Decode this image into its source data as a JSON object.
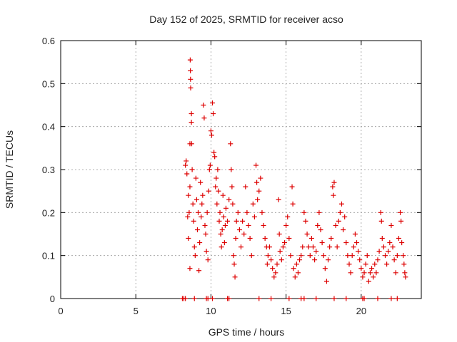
{
  "chart_data": {
    "type": "scatter",
    "title": "Day 152 of 2025, SRMTID for receiver acso",
    "xlabel": "GPS time / hours",
    "ylabel": "SRMTID / TECUs",
    "xlim": [
      0,
      24
    ],
    "ylim": [
      0,
      0.6
    ],
    "xticks": [
      "0",
      "5",
      "10",
      "15",
      "20"
    ],
    "yticks": [
      "0",
      "0.1",
      "0.2",
      "0.3",
      "0.4",
      "0.5",
      "0.6"
    ],
    "grid": true,
    "marker": "+",
    "color": "#dd0000",
    "series": [
      {
        "name": "SRMTID",
        "points": [
          [
            8.1,
            0.0
          ],
          [
            8.2,
            0.0
          ],
          [
            8.3,
            0.0
          ],
          [
            8.9,
            0.0
          ],
          [
            9.7,
            0.0
          ],
          [
            9.8,
            0.0
          ],
          [
            10.1,
            0.0
          ],
          [
            11.1,
            0.0
          ],
          [
            11.2,
            0.0
          ],
          [
            13.2,
            0.0
          ],
          [
            14.0,
            0.0
          ],
          [
            15.2,
            0.0
          ],
          [
            16.0,
            0.0
          ],
          [
            16.2,
            0.0
          ],
          [
            17.0,
            0.0
          ],
          [
            18.2,
            0.0
          ],
          [
            19.0,
            0.0
          ],
          [
            20.1,
            0.0
          ],
          [
            20.2,
            0.0
          ],
          [
            21.1,
            0.0
          ],
          [
            22.0,
            0.0
          ],
          [
            22.4,
            0.0
          ],
          [
            8.3,
            0.31
          ],
          [
            8.35,
            0.32
          ],
          [
            8.4,
            0.29
          ],
          [
            8.45,
            0.19
          ],
          [
            8.5,
            0.24
          ],
          [
            8.5,
            0.14
          ],
          [
            8.55,
            0.2
          ],
          [
            8.6,
            0.36
          ],
          [
            8.6,
            0.26
          ],
          [
            8.6,
            0.07
          ],
          [
            8.62,
            0.555
          ],
          [
            8.63,
            0.53
          ],
          [
            8.64,
            0.51
          ],
          [
            8.65,
            0.49
          ],
          [
            8.7,
            0.43
          ],
          [
            8.7,
            0.41
          ],
          [
            8.72,
            0.36
          ],
          [
            8.75,
            0.3
          ],
          [
            8.8,
            0.22
          ],
          [
            8.85,
            0.18
          ],
          [
            8.9,
            0.12
          ],
          [
            8.95,
            0.1
          ],
          [
            9.0,
            0.28
          ],
          [
            9.05,
            0.23
          ],
          [
            9.1,
            0.16
          ],
          [
            9.15,
            0.2
          ],
          [
            9.2,
            0.065
          ],
          [
            9.25,
            0.13
          ],
          [
            9.3,
            0.27
          ],
          [
            9.35,
            0.19
          ],
          [
            9.4,
            0.22
          ],
          [
            9.45,
            0.24
          ],
          [
            9.5,
            0.45
          ],
          [
            9.55,
            0.42
          ],
          [
            9.6,
            0.17
          ],
          [
            9.65,
            0.15
          ],
          [
            9.7,
            0.11
          ],
          [
            9.75,
            0.2
          ],
          [
            9.8,
            0.09
          ],
          [
            9.85,
            0.25
          ],
          [
            9.9,
            0.3
          ],
          [
            9.95,
            0.31
          ],
          [
            10.0,
            0.39
          ],
          [
            10.05,
            0.38
          ],
          [
            10.1,
            0.455
          ],
          [
            10.15,
            0.43
          ],
          [
            10.2,
            0.34
          ],
          [
            10.25,
            0.33
          ],
          [
            10.3,
            0.26
          ],
          [
            10.35,
            0.28
          ],
          [
            10.4,
            0.22
          ],
          [
            10.45,
            0.3
          ],
          [
            10.5,
            0.25
          ],
          [
            10.55,
            0.18
          ],
          [
            10.6,
            0.2
          ],
          [
            10.65,
            0.15
          ],
          [
            10.7,
            0.12
          ],
          [
            10.75,
            0.16
          ],
          [
            10.8,
            0.24
          ],
          [
            10.85,
            0.19
          ],
          [
            10.9,
            0.13
          ],
          [
            10.95,
            0.17
          ],
          [
            11.0,
            0.21
          ],
          [
            11.1,
            0.18
          ],
          [
            11.2,
            0.23
          ],
          [
            11.3,
            0.36
          ],
          [
            11.35,
            0.3
          ],
          [
            11.4,
            0.26
          ],
          [
            11.45,
            0.22
          ],
          [
            11.5,
            0.1
          ],
          [
            11.55,
            0.08
          ],
          [
            11.6,
            0.05
          ],
          [
            11.65,
            0.14
          ],
          [
            11.7,
            0.18
          ],
          [
            11.8,
            0.2
          ],
          [
            11.9,
            0.16
          ],
          [
            12.0,
            0.12
          ],
          [
            12.1,
            0.18
          ],
          [
            12.2,
            0.15
          ],
          [
            12.3,
            0.26
          ],
          [
            12.4,
            0.2
          ],
          [
            12.5,
            0.17
          ],
          [
            12.6,
            0.14
          ],
          [
            12.7,
            0.1
          ],
          [
            12.8,
            0.22
          ],
          [
            12.9,
            0.19
          ],
          [
            13.0,
            0.31
          ],
          [
            13.05,
            0.27
          ],
          [
            13.1,
            0.23
          ],
          [
            13.2,
            0.25
          ],
          [
            13.3,
            0.28
          ],
          [
            13.4,
            0.2
          ],
          [
            13.5,
            0.17
          ],
          [
            13.6,
            0.14
          ],
          [
            13.7,
            0.12
          ],
          [
            13.75,
            0.08
          ],
          [
            13.8,
            0.1
          ],
          [
            13.9,
            0.12
          ],
          [
            14.0,
            0.09
          ],
          [
            14.1,
            0.07
          ],
          [
            14.2,
            0.05
          ],
          [
            14.3,
            0.06
          ],
          [
            14.4,
            0.08
          ],
          [
            14.5,
            0.23
          ],
          [
            14.55,
            0.15
          ],
          [
            14.6,
            0.11
          ],
          [
            14.7,
            0.09
          ],
          [
            14.8,
            0.12
          ],
          [
            14.9,
            0.13
          ],
          [
            15.0,
            0.17
          ],
          [
            15.1,
            0.19
          ],
          [
            15.2,
            0.14
          ],
          [
            15.3,
            0.1
          ],
          [
            15.4,
            0.26
          ],
          [
            15.45,
            0.22
          ],
          [
            15.5,
            0.07
          ],
          [
            15.6,
            0.05
          ],
          [
            15.7,
            0.08
          ],
          [
            15.8,
            0.06
          ],
          [
            15.9,
            0.09
          ],
          [
            16.0,
            0.1
          ],
          [
            16.1,
            0.12
          ],
          [
            16.2,
            0.2
          ],
          [
            16.3,
            0.18
          ],
          [
            16.4,
            0.15
          ],
          [
            16.5,
            0.12
          ],
          [
            16.6,
            0.1
          ],
          [
            16.7,
            0.14
          ],
          [
            16.8,
            0.12
          ],
          [
            16.9,
            0.09
          ],
          [
            17.0,
            0.11
          ],
          [
            17.1,
            0.17
          ],
          [
            17.2,
            0.2
          ],
          [
            17.3,
            0.16
          ],
          [
            17.4,
            0.13
          ],
          [
            17.5,
            0.1
          ],
          [
            17.6,
            0.07
          ],
          [
            17.7,
            0.04
          ],
          [
            17.8,
            0.09
          ],
          [
            17.9,
            0.12
          ],
          [
            18.0,
            0.14
          ],
          [
            18.1,
            0.26
          ],
          [
            18.15,
            0.24
          ],
          [
            18.2,
            0.27
          ],
          [
            18.3,
            0.17
          ],
          [
            18.4,
            0.12
          ],
          [
            18.5,
            0.18
          ],
          [
            18.6,
            0.2
          ],
          [
            18.7,
            0.22
          ],
          [
            18.8,
            0.16
          ],
          [
            18.9,
            0.19
          ],
          [
            19.0,
            0.13
          ],
          [
            19.1,
            0.1
          ],
          [
            19.2,
            0.08
          ],
          [
            19.3,
            0.06
          ],
          [
            19.4,
            0.1
          ],
          [
            19.5,
            0.12
          ],
          [
            19.6,
            0.15
          ],
          [
            19.7,
            0.13
          ],
          [
            19.8,
            0.11
          ],
          [
            19.9,
            0.09
          ],
          [
            20.0,
            0.07
          ],
          [
            20.1,
            0.05
          ],
          [
            20.2,
            0.06
          ],
          [
            20.3,
            0.08
          ],
          [
            20.4,
            0.1
          ],
          [
            20.5,
            0.04
          ],
          [
            20.6,
            0.06
          ],
          [
            20.7,
            0.07
          ],
          [
            20.8,
            0.05
          ],
          [
            20.9,
            0.08
          ],
          [
            21.0,
            0.06
          ],
          [
            21.1,
            0.09
          ],
          [
            21.2,
            0.11
          ],
          [
            21.3,
            0.2
          ],
          [
            21.35,
            0.18
          ],
          [
            21.4,
            0.14
          ],
          [
            21.5,
            0.12
          ],
          [
            21.6,
            0.1
          ],
          [
            21.7,
            0.08
          ],
          [
            21.8,
            0.11
          ],
          [
            21.9,
            0.13
          ],
          [
            22.0,
            0.17
          ],
          [
            22.1,
            0.12
          ],
          [
            22.2,
            0.09
          ],
          [
            22.3,
            0.06
          ],
          [
            22.4,
            0.1
          ],
          [
            22.5,
            0.14
          ],
          [
            22.6,
            0.2
          ],
          [
            22.65,
            0.18
          ],
          [
            22.7,
            0.13
          ],
          [
            22.8,
            0.1
          ],
          [
            22.85,
            0.08
          ],
          [
            22.9,
            0.06
          ],
          [
            22.95,
            0.05
          ]
        ]
      }
    ]
  }
}
